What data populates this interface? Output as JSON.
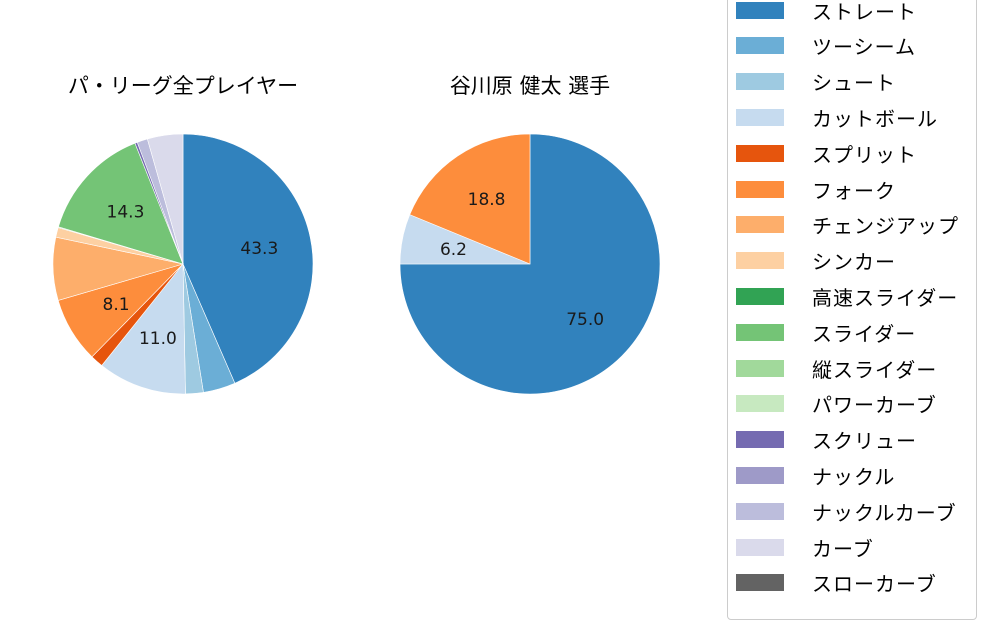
{
  "chart_data": [
    {
      "type": "pie",
      "title": "パ・リーグ全プレイヤー",
      "start_angle_deg": 90,
      "direction": "clockwise",
      "categories": [
        "ストレート",
        "ツーシーム",
        "シュート",
        "カットボール",
        "スプリット",
        "フォーク",
        "チェンジアップ",
        "シンカー",
        "高速スライダー",
        "スライダー",
        "縦スライダー",
        "パワーカーブ",
        "スクリュー",
        "ナックル",
        "ナックルカーブ",
        "カーブ",
        "スローカーブ"
      ],
      "values": [
        43.3,
        4.0,
        2.2,
        11.0,
        1.6,
        8.1,
        7.8,
        1.2,
        0.1,
        14.3,
        0.0,
        0.0,
        0.3,
        0.0,
        1.3,
        4.4,
        0.0
      ],
      "labeled_values": {
        "ストレート": 43.3,
        "カットボール": 11.0,
        "フォーク": 8.1,
        "スライダー": 14.3
      }
    },
    {
      "type": "pie",
      "title": "谷川原 健太  選手",
      "start_angle_deg": 90,
      "direction": "clockwise",
      "categories": [
        "ストレート",
        "カットボール",
        "フォーク"
      ],
      "values": [
        75.0,
        6.2,
        18.8
      ],
      "labeled_values": {
        "ストレート": 75.0,
        "カットボール": 6.2,
        "フォーク": 18.8
      }
    }
  ],
  "titles": {
    "left": "パ・リーグ全プレイヤー",
    "right": "谷川原 健太  選手"
  },
  "legend": {
    "items": [
      {
        "label": "ストレート",
        "color": "#3182bd"
      },
      {
        "label": "ツーシーム",
        "color": "#6baed6"
      },
      {
        "label": "シュート",
        "color": "#9ecae1"
      },
      {
        "label": "カットボール",
        "color": "#c6dbef"
      },
      {
        "label": "スプリット",
        "color": "#e6550d"
      },
      {
        "label": "フォーク",
        "color": "#fd8d3c"
      },
      {
        "label": "チェンジアップ",
        "color": "#fdae6b"
      },
      {
        "label": "シンカー",
        "color": "#fdd0a2"
      },
      {
        "label": "高速スライダー",
        "color": "#31a354"
      },
      {
        "label": "スライダー",
        "color": "#74c476"
      },
      {
        "label": "縦スライダー",
        "color": "#a1d99b"
      },
      {
        "label": "パワーカーブ",
        "color": "#c7e9c0"
      },
      {
        "label": "スクリュー",
        "color": "#756bb1"
      },
      {
        "label": "ナックル",
        "color": "#9e9ac8"
      },
      {
        "label": "ナックルカーブ",
        "color": "#bcbddc"
      },
      {
        "label": "カーブ",
        "color": "#dadaeb"
      },
      {
        "label": "スローカーブ",
        "color": "#636363"
      }
    ]
  }
}
